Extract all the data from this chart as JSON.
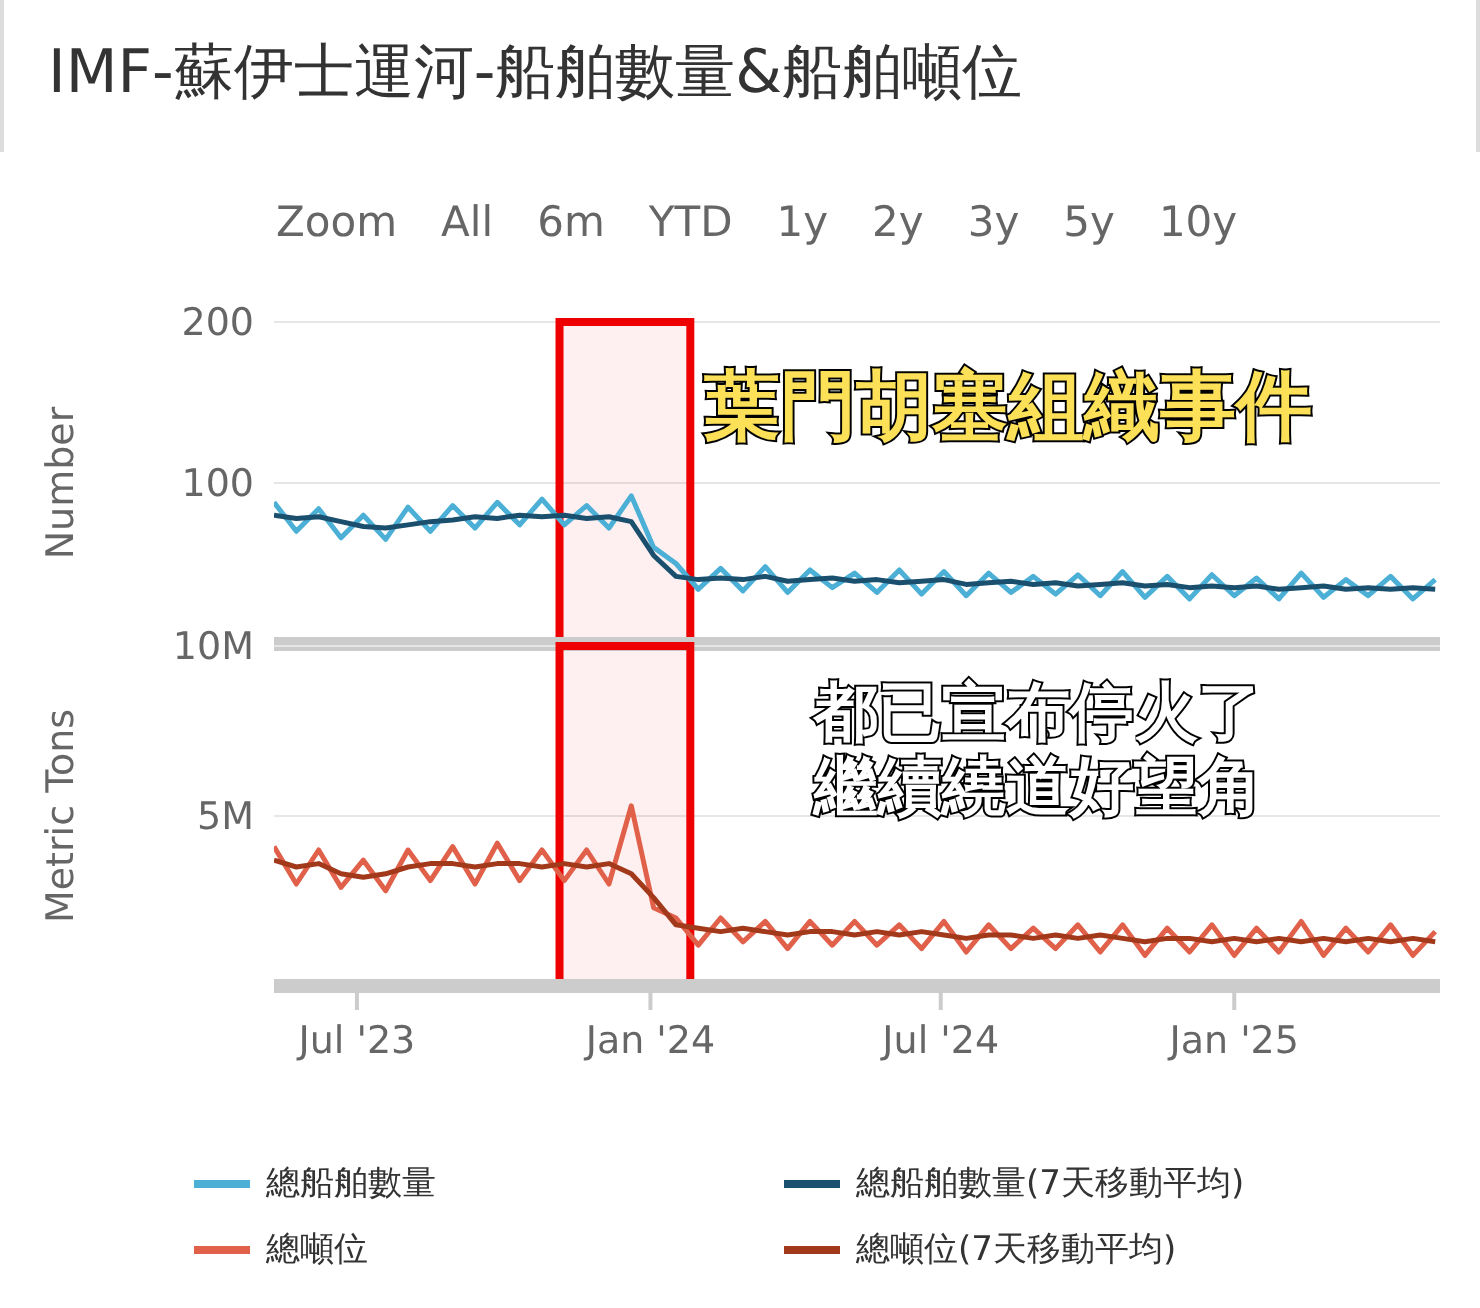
{
  "chart_data": [
    {
      "type": "line",
      "title": "IMF-蘇伊士運河-船舶數量&船舶噸位",
      "ylabel": "Number",
      "annotations": [
        "Zoom",
        "All",
        "6m",
        "YTD",
        "1y",
        "2y",
        "3y",
        "5y",
        "10y",
        "葉門胡塞組織事件"
      ],
      "x": [
        "2023-05-10",
        "2023-05-24",
        "2023-06-07",
        "2023-06-21",
        "2023-07-05",
        "2023-07-19",
        "2023-08-02",
        "2023-08-16",
        "2023-08-30",
        "2023-09-13",
        "2023-09-27",
        "2023-10-11",
        "2023-10-25",
        "2023-11-08",
        "2023-11-22",
        "2023-12-06",
        "2023-12-20",
        "2024-01-03",
        "2024-01-17",
        "2024-01-31",
        "2024-02-14",
        "2024-02-28",
        "2024-03-13",
        "2024-03-27",
        "2024-04-10",
        "2024-04-24",
        "2024-05-08",
        "2024-05-22",
        "2024-06-05",
        "2024-06-19",
        "2024-07-03",
        "2024-07-17",
        "2024-07-31",
        "2024-08-14",
        "2024-08-28",
        "2024-09-11",
        "2024-09-25",
        "2024-10-09",
        "2024-10-23",
        "2024-11-06",
        "2024-11-20",
        "2024-12-04",
        "2024-12-18",
        "2025-01-01",
        "2025-01-15",
        "2025-01-29",
        "2025-02-12",
        "2025-02-26",
        "2025-03-12",
        "2025-03-26",
        "2025-04-09",
        "2025-04-23",
        "2025-05-07"
      ],
      "series": [
        {
          "name": "總船舶數量",
          "color": "#4bafd6",
          "values": [
            88,
            70,
            84,
            66,
            80,
            65,
            85,
            70,
            86,
            72,
            88,
            74,
            90,
            74,
            86,
            72,
            92,
            60,
            50,
            34,
            47,
            33,
            48,
            32,
            46,
            35,
            44,
            32,
            46,
            31,
            45,
            30,
            44,
            32,
            42,
            31,
            43,
            30,
            45,
            29,
            42,
            28,
            43,
            30,
            41,
            28,
            44,
            29,
            40,
            30,
            42,
            28,
            40
          ]
        },
        {
          "name": "總船舶數量(7天移動平均)",
          "color": "#1b4f6e",
          "values": [
            80,
            78,
            79,
            76,
            73,
            72,
            74,
            76,
            77,
            79,
            78,
            80,
            79,
            80,
            78,
            79,
            76,
            55,
            42,
            40,
            41,
            40,
            42,
            39,
            40,
            41,
            39,
            40,
            38,
            39,
            40,
            37,
            38,
            39,
            37,
            38,
            36,
            37,
            38,
            36,
            37,
            35,
            36,
            35,
            36,
            34,
            35,
            36,
            34,
            35,
            34,
            35,
            34
          ]
        }
      ],
      "xlim": [
        "2023-05-10",
        "2025-05-10"
      ],
      "ylim": [
        0,
        200
      ],
      "yticks": [
        {
          "value": 0,
          "label": null
        },
        100,
        200
      ],
      "grid": "y",
      "legend": "bottom",
      "tick_labels": "y",
      "bands": [
        {
          "axis": "x",
          "from": "2023-11-05",
          "to": "2024-01-26",
          "color": "#ee0000"
        }
      ]
    },
    {
      "type": "line",
      "ylabel": "Metric Tons",
      "annotations": [
        "都已宣布停火了",
        "繼續繞道好望角"
      ],
      "x": [
        "2023-05-10",
        "2023-05-24",
        "2023-06-07",
        "2023-06-21",
        "2023-07-05",
        "2023-07-19",
        "2023-08-02",
        "2023-08-16",
        "2023-08-30",
        "2023-09-13",
        "2023-09-27",
        "2023-10-11",
        "2023-10-25",
        "2023-11-08",
        "2023-11-22",
        "2023-12-06",
        "2023-12-20",
        "2024-01-03",
        "2024-01-17",
        "2024-01-31",
        "2024-02-14",
        "2024-02-28",
        "2024-03-13",
        "2024-03-27",
        "2024-04-10",
        "2024-04-24",
        "2024-05-08",
        "2024-05-22",
        "2024-06-05",
        "2024-06-19",
        "2024-07-03",
        "2024-07-17",
        "2024-07-31",
        "2024-08-14",
        "2024-08-28",
        "2024-09-11",
        "2024-09-25",
        "2024-10-09",
        "2024-10-23",
        "2024-11-06",
        "2024-11-20",
        "2024-12-04",
        "2024-12-18",
        "2025-01-01",
        "2025-01-15",
        "2025-01-29",
        "2025-02-12",
        "2025-02-26",
        "2025-03-12",
        "2025-03-26",
        "2025-04-09",
        "2025-04-23",
        "2025-05-07"
      ],
      "series": [
        {
          "name": "總噸位",
          "color": "#e0604a",
          "values": [
            4100000,
            3000000,
            4000000,
            2900000,
            3700000,
            2800000,
            4000000,
            3100000,
            4100000,
            3000000,
            4200000,
            3100000,
            4000000,
            3100000,
            4000000,
            3000000,
            5300000,
            2300000,
            2000000,
            1200000,
            2000000,
            1300000,
            1900000,
            1100000,
            1900000,
            1200000,
            1900000,
            1200000,
            1800000,
            1100000,
            1900000,
            1000000,
            1800000,
            1100000,
            1700000,
            1100000,
            1800000,
            1000000,
            1800000,
            900000,
            1700000,
            1000000,
            1800000,
            900000,
            1700000,
            1000000,
            1900000,
            900000,
            1700000,
            1000000,
            1800000,
            900000,
            1600000
          ]
        },
        {
          "name": "總噸位(7天移動平均)",
          "color": "#a2391b",
          "values": [
            3700000,
            3500000,
            3600000,
            3300000,
            3200000,
            3300000,
            3500000,
            3600000,
            3600000,
            3500000,
            3600000,
            3600000,
            3500000,
            3600000,
            3500000,
            3600000,
            3300000,
            2600000,
            1800000,
            1700000,
            1600000,
            1700000,
            1600000,
            1500000,
            1600000,
            1600000,
            1500000,
            1600000,
            1500000,
            1600000,
            1500000,
            1400000,
            1500000,
            1500000,
            1400000,
            1500000,
            1400000,
            1500000,
            1400000,
            1300000,
            1400000,
            1400000,
            1300000,
            1400000,
            1300000,
            1400000,
            1300000,
            1400000,
            1300000,
            1400000,
            1300000,
            1400000,
            1300000
          ]
        }
      ],
      "xlim": [
        "2023-05-10",
        "2025-05-10"
      ],
      "xticks": [
        {
          "value": "2023-07-01",
          "label": "Jul '23"
        },
        {
          "value": "2024-01-01",
          "label": "Jan '24"
        },
        {
          "value": "2024-07-01",
          "label": "Jul '24"
        },
        {
          "value": "2025-01-01",
          "label": "Jan '25"
        }
      ],
      "ylim": [
        0,
        10000000
      ],
      "yticks": [
        {
          "value": 0,
          "label": null
        },
        {
          "value": 5000000,
          "label": "5M"
        },
        {
          "value": 10000000,
          "label": "10M"
        }
      ],
      "grid": "y",
      "legend": "bottom",
      "bands": [
        {
          "axis": "x",
          "from": "2023-11-05",
          "to": "2024-01-26",
          "color": "#ee0000"
        }
      ]
    }
  ]
}
